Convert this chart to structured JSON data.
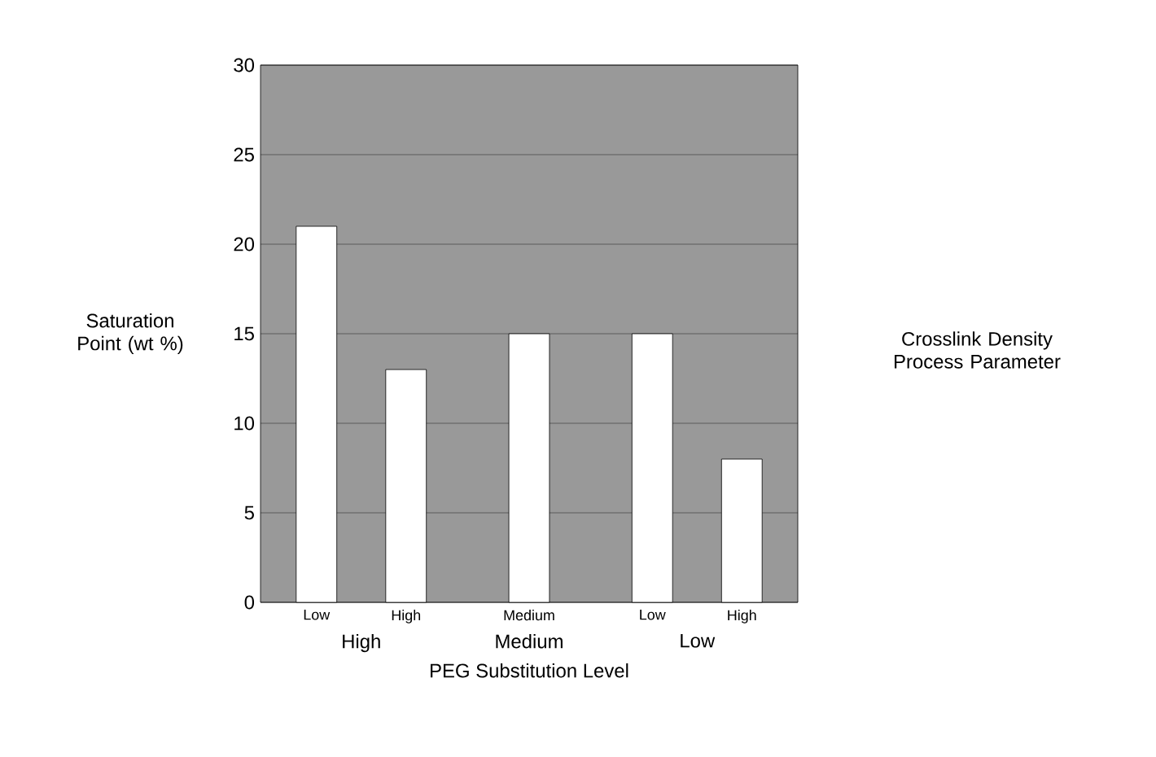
{
  "chart_data": {
    "type": "bar",
    "xlabel": "PEG Substitution Level",
    "ylabel": "Saturation Point (wt %)",
    "categories": [
      "High",
      "Medium",
      "Low"
    ],
    "series": [
      {
        "name": "Low",
        "color": "#ffffff",
        "values": [
          21,
          null,
          15
        ]
      },
      {
        "name": "Medium",
        "color": "#ffffff",
        "values": [
          null,
          15,
          null
        ]
      },
      {
        "name": "High",
        "color": "#ffffff",
        "values": [
          13,
          null,
          8
        ]
      }
    ],
    "ylim": [
      0,
      30
    ],
    "yticks": [
      0,
      5,
      10,
      15,
      20,
      25,
      30
    ],
    "grid": "y",
    "annotations": [
      "Crosslink Density Process Parameter"
    ]
  }
}
